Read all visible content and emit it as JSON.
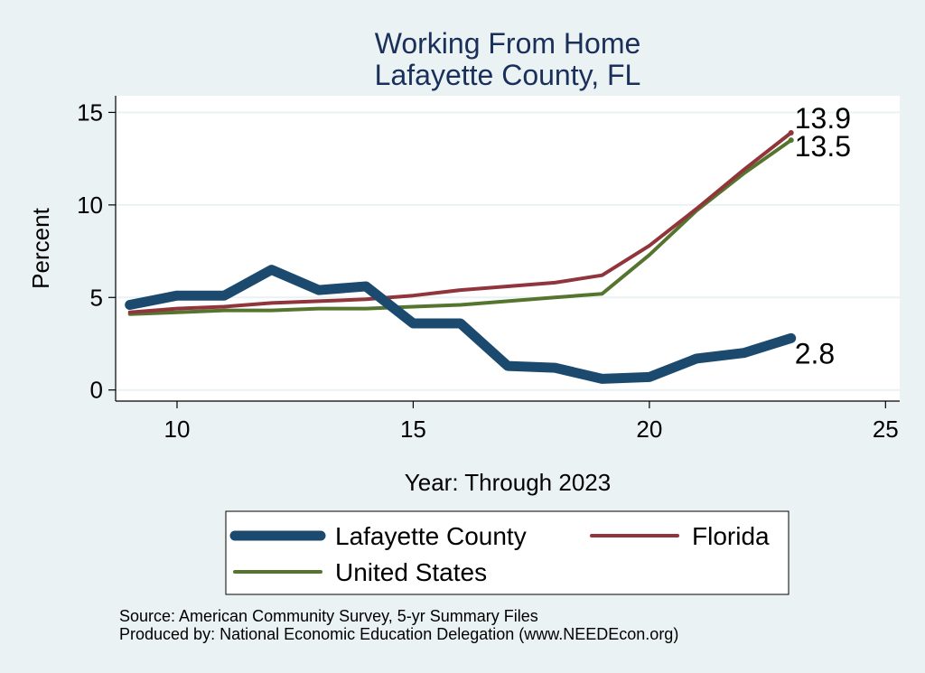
{
  "chart_data": {
    "type": "line",
    "title": "Working From Home",
    "subtitle": "Lafayette County, FL",
    "xlabel": "Year: Through 2023",
    "ylabel": "Percent",
    "xlim": [
      8.7,
      25.3
    ],
    "ylim": [
      -0.6,
      15.9
    ],
    "xticks": [
      10,
      15,
      20,
      25
    ],
    "yticks": [
      0,
      5,
      10,
      15
    ],
    "grid": true,
    "legend": "bottom",
    "series": [
      {
        "name": "Lafayette County",
        "color": "#1b4a6e",
        "x": [
          9,
          10,
          11,
          12,
          13,
          14,
          15,
          16,
          17,
          18,
          19,
          20,
          21,
          22,
          23
        ],
        "values": [
          4.6,
          5.1,
          5.1,
          6.5,
          5.4,
          5.6,
          3.6,
          3.6,
          1.3,
          1.2,
          0.6,
          0.7,
          1.7,
          2.0,
          2.8
        ],
        "end_label": "2.8"
      },
      {
        "name": "Florida",
        "color": "#90353b",
        "x": [
          9,
          10,
          11,
          12,
          13,
          14,
          15,
          16,
          17,
          18,
          19,
          20,
          21,
          22,
          23
        ],
        "values": [
          4.2,
          4.4,
          4.5,
          4.7,
          4.8,
          4.9,
          5.1,
          5.4,
          5.6,
          5.8,
          6.2,
          7.8,
          9.8,
          11.9,
          13.9
        ],
        "end_label": "13.9"
      },
      {
        "name": "United States",
        "color": "#55752f",
        "x": [
          9,
          10,
          11,
          12,
          13,
          14,
          15,
          16,
          17,
          18,
          19,
          20,
          21,
          22,
          23
        ],
        "values": [
          4.1,
          4.2,
          4.3,
          4.3,
          4.4,
          4.4,
          4.5,
          4.6,
          4.8,
          5.0,
          5.2,
          7.3,
          9.7,
          11.7,
          13.5
        ],
        "end_label": "13.5"
      }
    ]
  },
  "source_lines": [
    "Source: American Community Survey, 5-yr Summary Files",
    "Produced by: National Economic Education Delegation (www.NEEDEcon.org)"
  ]
}
